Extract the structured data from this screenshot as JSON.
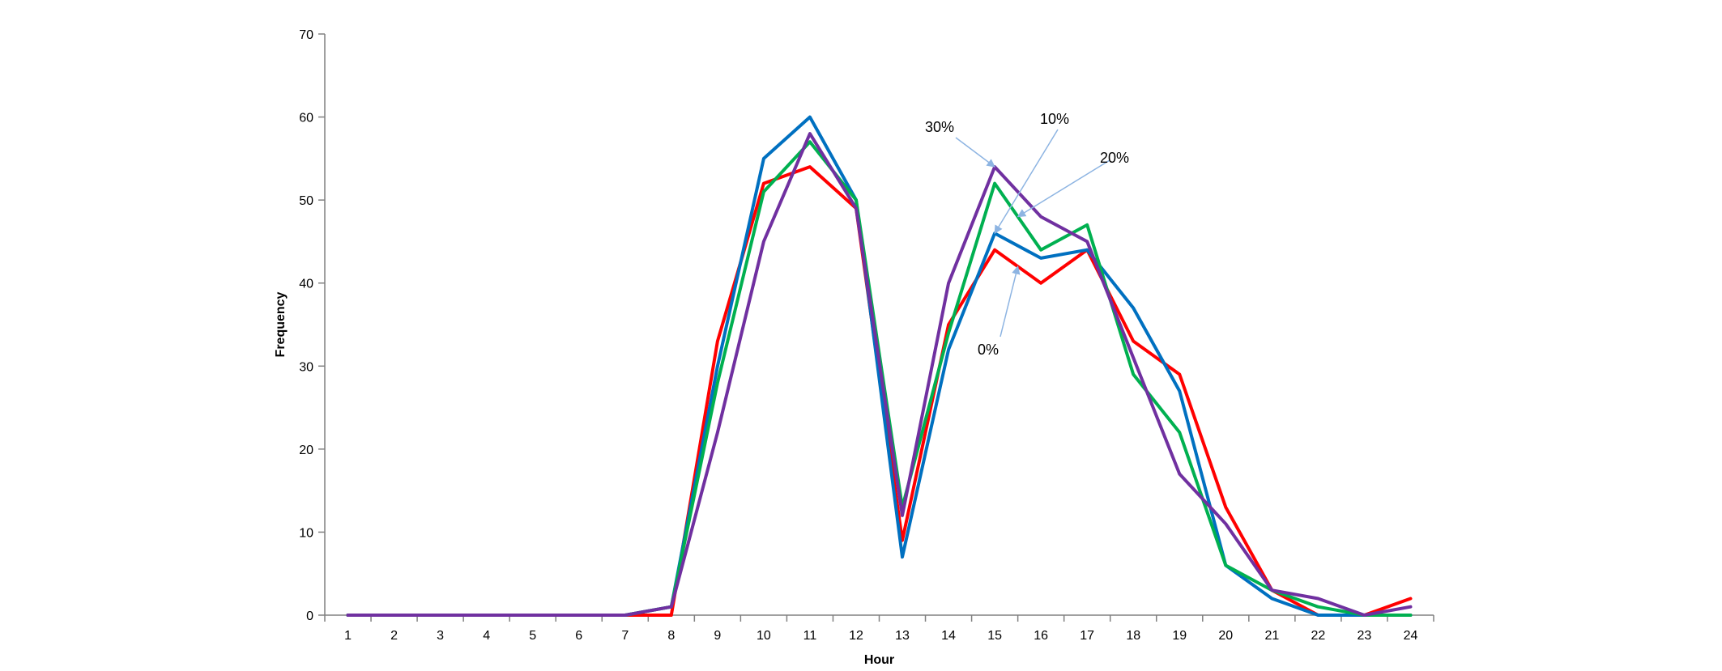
{
  "chart_data": {
    "type": "line",
    "title": "",
    "xlabel": "Hour",
    "ylabel": "Frequency",
    "ylim": [
      0,
      70
    ],
    "yticks": [
      0,
      10,
      20,
      30,
      40,
      50,
      60,
      70
    ],
    "x": [
      1,
      2,
      3,
      4,
      5,
      6,
      7,
      8,
      9,
      10,
      11,
      12,
      13,
      14,
      15,
      16,
      17,
      18,
      19,
      20,
      21,
      22,
      23,
      24
    ],
    "legend": "none",
    "series": [
      {
        "name": "0%",
        "color": "#ff0000",
        "values": [
          0,
          0,
          0,
          0,
          0,
          0,
          0,
          0,
          33,
          52,
          54,
          49,
          9,
          35,
          44,
          40,
          44,
          33,
          29,
          13,
          3,
          0,
          0,
          2
        ]
      },
      {
        "name": "10%",
        "color": "#0070c0",
        "values": [
          0,
          0,
          0,
          0,
          0,
          0,
          0,
          1,
          30,
          55,
          60,
          50,
          7,
          32,
          46,
          43,
          44,
          37,
          27,
          6,
          2,
          0,
          0,
          0
        ]
      },
      {
        "name": "20%",
        "color": "#00b050",
        "values": [
          0,
          0,
          0,
          0,
          0,
          0,
          0,
          1,
          28,
          51,
          57,
          50,
          13,
          34,
          52,
          44,
          47,
          29,
          22,
          6,
          3,
          1,
          0,
          0
        ]
      },
      {
        "name": "30%",
        "color": "#7030a0",
        "values": [
          0,
          0,
          0,
          0,
          0,
          0,
          0,
          1,
          22,
          45,
          58,
          49,
          12,
          40,
          54,
          48,
          45,
          31,
          17,
          11,
          3,
          2,
          0,
          1
        ]
      }
    ],
    "annotations": [
      {
        "text": "30%",
        "series": "30%",
        "points_to_x": 15,
        "points_to_y": 54
      },
      {
        "text": "10%",
        "series": "10%",
        "points_to_x": 15,
        "points_to_y": 46
      },
      {
        "text": "20%",
        "series": "20%",
        "points_to_x": 15.5,
        "points_to_y": 48
      },
      {
        "text": "0%",
        "series": "0%",
        "points_to_x": 15.5,
        "points_to_y": 42
      }
    ],
    "annotation_arrow_color": "#8db4e2"
  }
}
